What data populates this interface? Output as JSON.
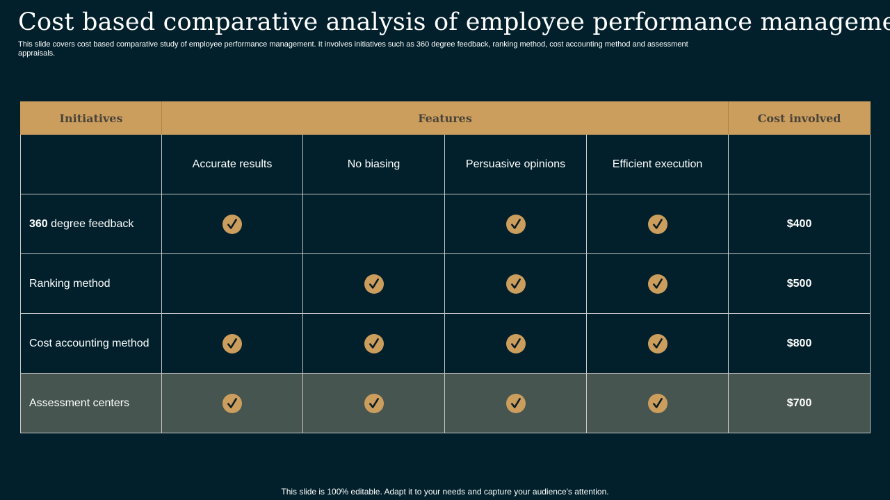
{
  "slide": {
    "title": "Cost based comparative analysis of employee performance management",
    "subtitle": "This slide covers cost based comparative study of employee performance management. It involves initiatives such as 360 degree feedback, ranking method, cost accounting method and assessment appraisals.",
    "footer": "This slide is 100% editable. Adapt it to your needs and capture your audience's attention."
  },
  "table": {
    "headers": {
      "initiatives": "Initiatives",
      "features": "Features",
      "cost": "Cost involved"
    },
    "features": [
      "Accurate results",
      "No biasing",
      "Persuasive opinions",
      "Efficient execution"
    ],
    "rows": [
      {
        "prefix": "360",
        "rest": " degree feedback",
        "checks": [
          true,
          false,
          true,
          true
        ],
        "cost": "$400"
      },
      {
        "prefix": "",
        "rest": "Ranking method",
        "checks": [
          false,
          true,
          true,
          true
        ],
        "cost": "$500"
      },
      {
        "prefix": "",
        "rest": "Cost accounting method",
        "checks": [
          true,
          true,
          true,
          true
        ],
        "cost": "$800"
      },
      {
        "prefix": "",
        "rest": "Assessment centers",
        "checks": [
          true,
          true,
          true,
          true
        ],
        "cost": "$700"
      }
    ]
  },
  "icons": {
    "check": "check-circle-icon"
  },
  "colors": {
    "background": "#01202b",
    "header": "#cc9e5e",
    "header_text": "#4a4338",
    "check_fill": "#cc9e5e",
    "shaded_row": "#465550"
  }
}
